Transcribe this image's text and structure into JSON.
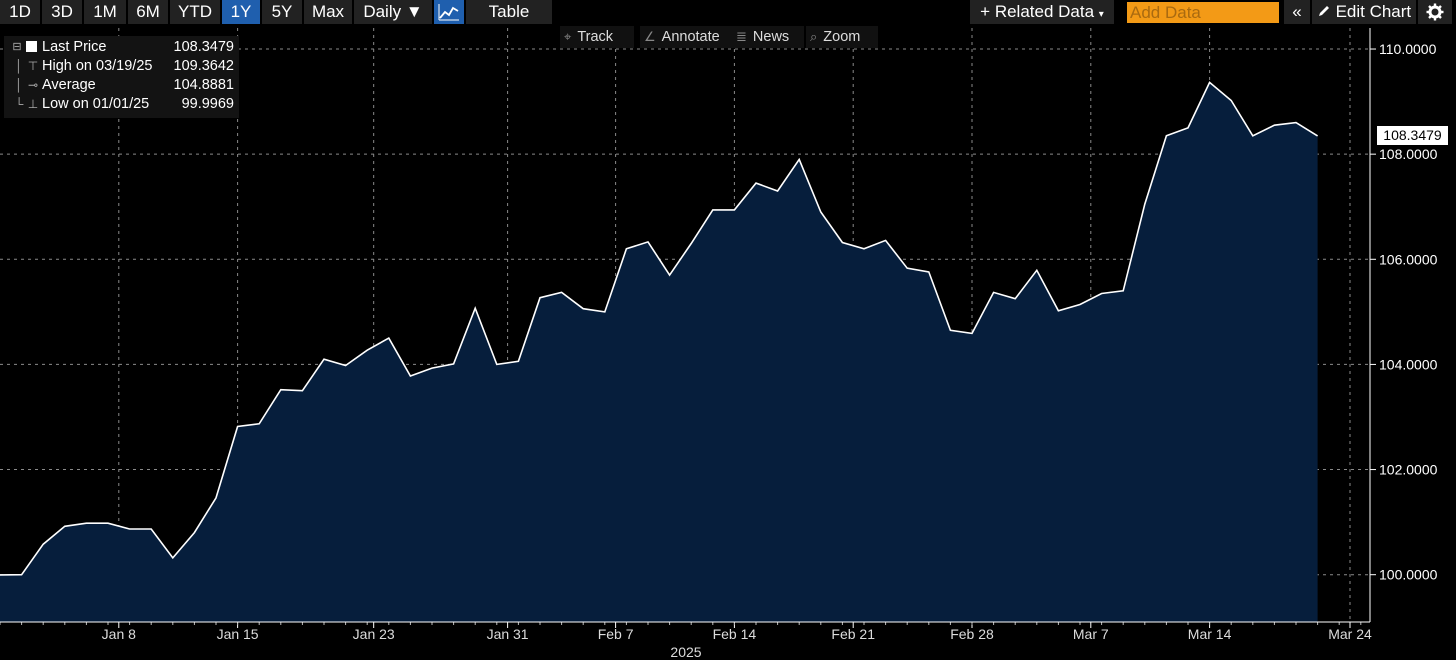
{
  "toolbar": {
    "ranges": [
      "1D",
      "3D",
      "1M",
      "6M",
      "YTD",
      "1Y",
      "5Y",
      "Max"
    ],
    "active_range": "1Y",
    "frequency": "Daily ▼",
    "chart_icon": "line-chart-icon",
    "table_label": "Table",
    "related_data": "Related Data",
    "add_data_placeholder": "Add Data",
    "collapse_icon": "«",
    "edit_chart": "Edit Chart",
    "settings_icon": "gear-icon"
  },
  "subtools": {
    "track": "Track",
    "annotate": "Annotate",
    "news": "News",
    "zoom": "Zoom"
  },
  "legend": {
    "last_price_label": "Last Price",
    "last_price_value": "108.3479",
    "high_label": "High on 03/19/25",
    "high_value": "109.3642",
    "average_label": "Average",
    "average_value": "104.8881",
    "low_label": "Low on 01/01/25",
    "low_value": "99.9969"
  },
  "last_price_tag": "108.3479",
  "chart_data": {
    "type": "area",
    "title": "",
    "xlabel": "2025",
    "ylabel": "",
    "colors": {
      "fill": "#061e3c",
      "line": "#ffffff",
      "background": "#000000",
      "grid": "#8a8a8a"
    },
    "grid": true,
    "ylim": [
      99.1,
      110.4
    ],
    "y_ticks": [
      "100.0000",
      "102.0000",
      "104.0000",
      "106.0000",
      "108.0000",
      "110.0000"
    ],
    "y_tick_values": [
      100,
      102,
      104,
      106,
      108,
      110
    ],
    "x_ticks": [
      "Jan 8",
      "Jan 15",
      "Jan 23",
      "Jan 31",
      "Feb 7",
      "Feb 14",
      "Feb 21",
      "Feb 28",
      "Mar 7",
      "Mar 14",
      "Mar 24"
    ],
    "x_tick_index": [
      5.5,
      11,
      17.3,
      23.5,
      28.5,
      34,
      39.5,
      45,
      50.5,
      56,
      62.5
    ],
    "series": [
      {
        "values": [
          99.9969,
          100.0,
          100.58,
          100.92,
          100.98,
          100.98,
          100.87,
          100.87,
          100.32,
          100.8,
          101.46,
          102.82,
          102.87,
          103.52,
          103.5,
          104.1,
          103.98,
          104.27,
          104.5,
          103.78,
          103.93,
          104.01,
          105.07,
          104.0,
          104.06,
          105.27,
          105.37,
          105.06,
          105.0,
          106.2,
          106.33,
          105.7,
          106.3,
          106.94,
          106.94,
          107.45,
          107.3,
          107.9,
          106.9,
          106.32,
          106.2,
          106.36,
          105.83,
          105.76,
          104.65,
          104.59,
          105.37,
          105.25,
          105.79,
          105.02,
          105.14,
          105.35,
          105.4,
          107.05,
          108.35,
          108.5,
          109.3642,
          109.02,
          108.35,
          108.55,
          108.6,
          108.3479
        ]
      }
    ]
  }
}
